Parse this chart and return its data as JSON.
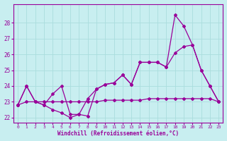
{
  "xlabel": "Windchill (Refroidissement éolien,°C)",
  "background_color": "#c8eef0",
  "line_color": "#990099",
  "grid_color": "#aadddd",
  "x_ticks": [
    0,
    1,
    2,
    3,
    4,
    5,
    6,
    7,
    8,
    9,
    10,
    11,
    12,
    13,
    14,
    15,
    16,
    17,
    18,
    19,
    20,
    21,
    22,
    23
  ],
  "ylim": [
    21.7,
    29.2
  ],
  "xlim": [
    -0.5,
    23.5
  ],
  "yticks": [
    22,
    23,
    24,
    25,
    26,
    27,
    28
  ],
  "line1_x": [
    0,
    1,
    2,
    3,
    4,
    5,
    6,
    7,
    8,
    9,
    10,
    11,
    12,
    13,
    14,
    15,
    16,
    17,
    18,
    19,
    20,
    21,
    22,
    23
  ],
  "line1_y": [
    22.8,
    23.0,
    23.0,
    23.0,
    23.0,
    23.0,
    23.0,
    23.0,
    23.0,
    23.0,
    23.1,
    23.1,
    23.1,
    23.1,
    23.1,
    23.2,
    23.2,
    23.2,
    23.2,
    23.2,
    23.2,
    23.2,
    23.2,
    23.0
  ],
  "line2_x": [
    0,
    1,
    2,
    3,
    4,
    5,
    6,
    7,
    8,
    9,
    10,
    11,
    12,
    13,
    14,
    15,
    16,
    17,
    18,
    19,
    20,
    21,
    22,
    23
  ],
  "line2_y": [
    22.8,
    24.0,
    23.0,
    22.8,
    23.5,
    24.0,
    22.2,
    22.2,
    23.2,
    23.8,
    24.1,
    24.2,
    24.7,
    24.1,
    25.5,
    25.5,
    25.5,
    25.2,
    26.1,
    26.5,
    26.6,
    25.0,
    24.0,
    23.0
  ],
  "line3_x": [
    0,
    1,
    2,
    3,
    4,
    5,
    6,
    7,
    8,
    9,
    10,
    11,
    12,
    13,
    14,
    15,
    16,
    17,
    18,
    19,
    20,
    21,
    22,
    23
  ],
  "line3_y": [
    22.8,
    24.0,
    23.0,
    22.8,
    22.5,
    22.3,
    22.0,
    22.2,
    22.1,
    23.8,
    24.1,
    24.2,
    24.7,
    24.1,
    25.5,
    25.5,
    25.5,
    25.2,
    28.5,
    27.8,
    26.6,
    25.0,
    24.0,
    23.0
  ],
  "marker": "D",
  "markersize": 2,
  "linewidth": 0.9
}
